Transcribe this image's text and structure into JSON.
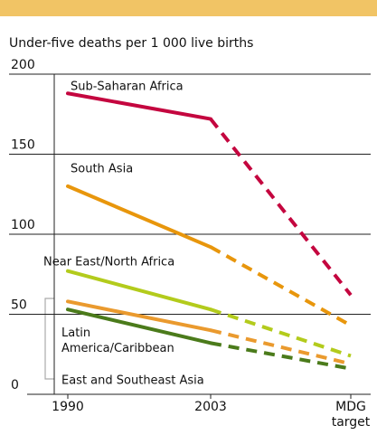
{
  "chart_data": {
    "type": "line",
    "title": "Under-five deaths per 1 000 live births",
    "categories": [
      "1990",
      "2003",
      "MDG target"
    ],
    "ylim": [
      0,
      200
    ],
    "yticks": [
      0,
      50,
      100,
      150,
      200
    ],
    "grid": true,
    "series": [
      {
        "name": "Sub-Saharan Africa",
        "color": "#c4063f",
        "values": [
          188,
          172,
          62
        ]
      },
      {
        "name": "South Asia",
        "color": "#e8960c",
        "values": [
          130,
          92,
          43
        ]
      },
      {
        "name": "Near East/North Africa",
        "color": "#b3cb1c",
        "values": [
          77,
          53,
          24
        ]
      },
      {
        "name": "Latin America/Caribbean",
        "color": "#ea9a2e",
        "values": [
          58,
          40,
          19
        ]
      },
      {
        "name": "East and Southeast Asia",
        "color": "#4b7b1b",
        "values": [
          53,
          32,
          16
        ]
      }
    ]
  }
}
